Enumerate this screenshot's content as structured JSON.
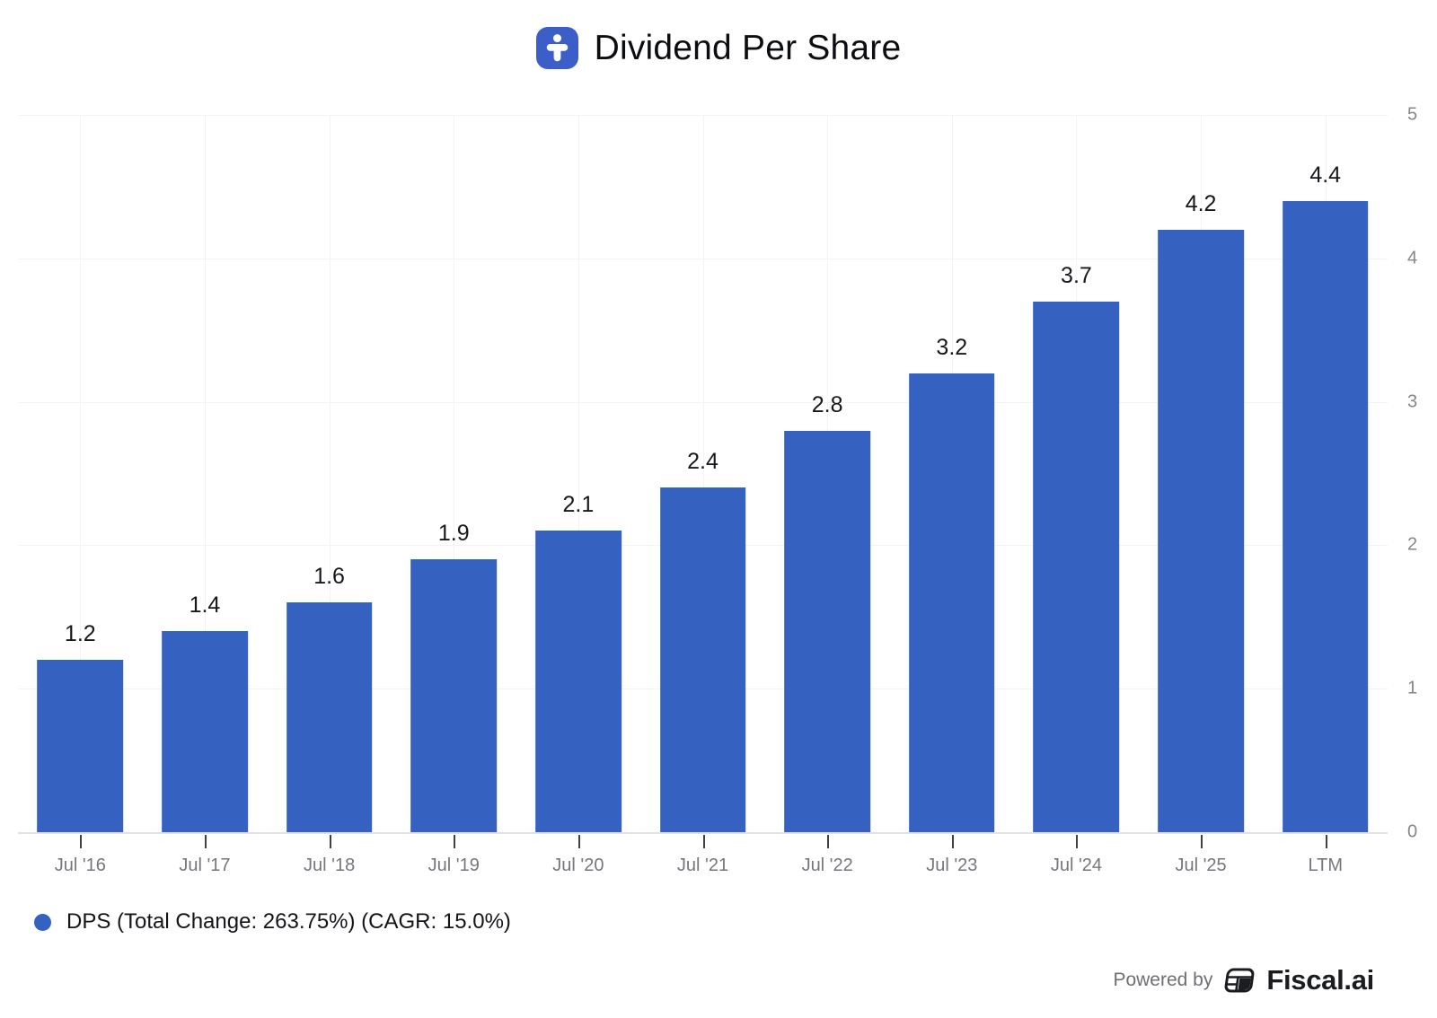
{
  "header": {
    "title": "Dividend Per Share"
  },
  "chart_data": {
    "type": "bar",
    "title": "Dividend Per Share",
    "series_name": "DPS",
    "categories": [
      "Jul '16",
      "Jul '17",
      "Jul '18",
      "Jul '19",
      "Jul '20",
      "Jul '21",
      "Jul '22",
      "Jul '23",
      "Jul '24",
      "Jul '25",
      "LTM"
    ],
    "values": [
      1.2,
      1.4,
      1.6,
      1.9,
      2.1,
      2.4,
      2.8,
      3.2,
      3.7,
      4.2,
      4.4
    ],
    "ylim": [
      0,
      5
    ],
    "yticks": [
      0,
      1,
      2,
      3,
      4,
      5
    ],
    "y_axis_side": "right",
    "grid": true,
    "bar_color": "#3561c1",
    "legend_position": "bottom-left"
  },
  "legend": {
    "label": "DPS (Total Change: 263.75%) (CAGR: 15.0%)",
    "dot_color": "#3561c1"
  },
  "footer": {
    "powered_by": "Powered by",
    "brand": "Fiscal.ai"
  },
  "colors": {
    "bar": "#3561c1",
    "title_icon_bg": "#3b5ec9",
    "gridline": "#f3f3f5",
    "baseline": "#e2e2e5",
    "axis_label": "#85858a",
    "value_label": "#17181c"
  }
}
